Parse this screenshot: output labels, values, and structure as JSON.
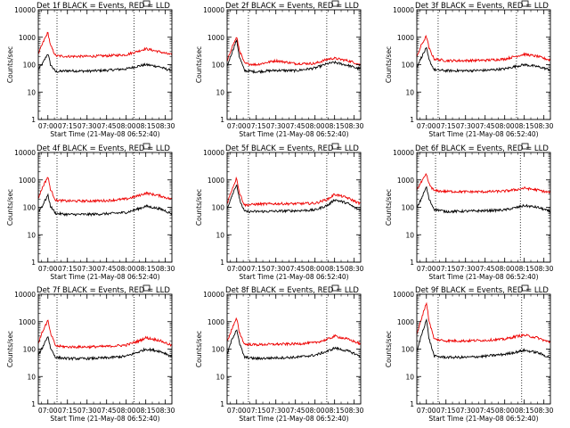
{
  "chart_data": [
    {
      "type": "line",
      "title": "Det 1f BLACK = Events, RED = LLD",
      "xlabel": "Start Time (21-May-08 06:52:40)",
      "ylabel": "Counts/sec",
      "yscale": "log",
      "ylim": [
        1,
        10000
      ],
      "xlim": [
        "06:52:40",
        "08:35:00"
      ],
      "xticks": [
        "07:00",
        "07:15",
        "07:30",
        "07:45",
        "08:00",
        "08:15",
        "08:30"
      ],
      "yticks": [
        "1",
        "10",
        "100",
        "1000",
        "10000"
      ],
      "vlines": [
        "07:07",
        "08:06"
      ],
      "grid": false,
      "series": [
        {
          "color": "#000000",
          "x": [
            "06:52",
            "06:56",
            "07:00",
            "07:02",
            "07:06",
            "07:15",
            "07:30",
            "07:45",
            "08:00",
            "08:10",
            "08:15",
            "08:25",
            "08:30",
            "08:34"
          ],
          "values": [
            60,
            110,
            260,
            100,
            55,
            60,
            58,
            62,
            70,
            90,
            100,
            85,
            70,
            62
          ]
        },
        {
          "color": "#ee0000",
          "x": [
            "06:52",
            "06:56",
            "07:00",
            "07:02",
            "07:06",
            "07:15",
            "07:30",
            "07:45",
            "08:00",
            "08:10",
            "08:15",
            "08:25",
            "08:30",
            "08:34"
          ],
          "values": [
            200,
            600,
            1500,
            500,
            210,
            200,
            200,
            210,
            230,
            320,
            380,
            300,
            260,
            230
          ]
        }
      ]
    },
    {
      "type": "line",
      "title": "Det 2f BLACK = Events, RED = LLD",
      "xlabel": "Start Time (21-May-08 06:52:40)",
      "ylabel": "Counts/sec",
      "yscale": "log",
      "ylim": [
        1,
        10000
      ],
      "xlim": [
        "06:52:40",
        "08:35:00"
      ],
      "xticks": [
        "07:00",
        "07:15",
        "07:30",
        "07:45",
        "08:00",
        "08:15",
        "08:30"
      ],
      "yticks": [
        "1",
        "10",
        "100",
        "1000",
        "10000"
      ],
      "vlines": [
        "07:09",
        "08:09"
      ],
      "grid": false,
      "series": [
        {
          "color": "#000000",
          "x": [
            "06:52",
            "06:56",
            "07:00",
            "07:02",
            "07:06",
            "07:15",
            "07:30",
            "07:45",
            "08:00",
            "08:10",
            "08:15",
            "08:25",
            "08:30",
            "08:34"
          ],
          "values": [
            70,
            250,
            800,
            200,
            60,
            55,
            62,
            60,
            75,
            110,
            120,
            95,
            80,
            70
          ]
        },
        {
          "color": "#ee0000",
          "x": [
            "06:52",
            "06:56",
            "07:00",
            "07:02",
            "07:06",
            "07:15",
            "07:30",
            "07:45",
            "08:00",
            "08:10",
            "08:15",
            "08:25",
            "08:30",
            "08:34"
          ],
          "values": [
            100,
            400,
            1000,
            350,
            110,
            100,
            140,
            110,
            110,
            160,
            170,
            140,
            120,
            100
          ]
        }
      ]
    },
    {
      "type": "line",
      "title": "Det 3f BLACK = Events, RED = LLD",
      "xlabel": "Start Time (21-May-08 06:52:40)",
      "ylabel": "Counts/sec",
      "yscale": "log",
      "ylim": [
        1,
        10000
      ],
      "xlim": [
        "06:52:40",
        "08:35:00"
      ],
      "xticks": [
        "07:00",
        "07:15",
        "07:30",
        "07:45",
        "08:00",
        "08:15",
        "08:30"
      ],
      "yticks": [
        "1",
        "10",
        "100",
        "1000",
        "10000"
      ],
      "vlines": [
        "07:09",
        "08:09"
      ],
      "grid": false,
      "series": [
        {
          "color": "#000000",
          "x": [
            "06:52",
            "06:56",
            "07:00",
            "07:02",
            "07:06",
            "07:15",
            "07:30",
            "07:45",
            "08:00",
            "08:10",
            "08:15",
            "08:25",
            "08:30",
            "08:34"
          ],
          "values": [
            70,
            180,
            400,
            150,
            65,
            60,
            60,
            62,
            70,
            90,
            100,
            85,
            75,
            65
          ]
        },
        {
          "color": "#ee0000",
          "x": [
            "06:52",
            "06:56",
            "07:00",
            "07:02",
            "07:06",
            "07:15",
            "07:30",
            "07:45",
            "08:00",
            "08:10",
            "08:15",
            "08:25",
            "08:30",
            "08:34"
          ],
          "values": [
            150,
            500,
            1100,
            400,
            160,
            140,
            140,
            145,
            160,
            210,
            240,
            200,
            170,
            150
          ]
        }
      ]
    },
    {
      "type": "line",
      "title": "Det 4f BLACK = Events, RED = LLD",
      "xlabel": "Start Time (21-May-08 06:52:40)",
      "ylabel": "Counts/sec",
      "yscale": "log",
      "ylim": [
        1,
        10000
      ],
      "xlim": [
        "06:52:40",
        "08:35:00"
      ],
      "xticks": [
        "07:00",
        "07:15",
        "07:30",
        "07:45",
        "08:00",
        "08:15",
        "08:30"
      ],
      "yticks": [
        "1",
        "10",
        "100",
        "1000",
        "10000"
      ],
      "vlines": [
        "07:07",
        "08:06"
      ],
      "grid": false,
      "series": [
        {
          "color": "#000000",
          "x": [
            "06:52",
            "06:56",
            "07:00",
            "07:02",
            "07:06",
            "07:15",
            "07:30",
            "07:45",
            "08:00",
            "08:10",
            "08:15",
            "08:25",
            "08:30",
            "08:34"
          ],
          "values": [
            60,
            120,
            280,
            110,
            60,
            55,
            55,
            58,
            65,
            90,
            110,
            90,
            75,
            60
          ]
        },
        {
          "color": "#ee0000",
          "x": [
            "06:52",
            "06:56",
            "07:00",
            "07:02",
            "07:06",
            "07:15",
            "07:30",
            "07:45",
            "08:00",
            "08:10",
            "08:15",
            "08:25",
            "08:30",
            "08:34"
          ],
          "values": [
            180,
            550,
            1300,
            450,
            180,
            170,
            170,
            175,
            200,
            270,
            330,
            270,
            230,
            200
          ]
        }
      ]
    },
    {
      "type": "line",
      "title": "Det 5f BLACK = Events, RED = LLD",
      "xlabel": "Start Time (21-May-08 06:52:40)",
      "ylabel": "Counts/sec",
      "yscale": "log",
      "ylim": [
        1,
        10000
      ],
      "xlim": [
        "06:52:40",
        "08:35:00"
      ],
      "xticks": [
        "07:00",
        "07:15",
        "07:30",
        "07:45",
        "08:00",
        "08:15",
        "08:30"
      ],
      "yticks": [
        "1",
        "10",
        "100",
        "1000",
        "10000"
      ],
      "vlines": [
        "07:09",
        "08:09"
      ],
      "grid": false,
      "series": [
        {
          "color": "#000000",
          "x": [
            "06:52",
            "06:56",
            "07:00",
            "07:02",
            "07:06",
            "07:15",
            "07:30",
            "07:45",
            "08:00",
            "08:10",
            "08:15",
            "08:25",
            "08:30",
            "08:34"
          ],
          "values": [
            70,
            250,
            700,
            200,
            70,
            70,
            72,
            75,
            80,
            120,
            190,
            140,
            100,
            80
          ]
        },
        {
          "color": "#ee0000",
          "x": [
            "06:52",
            "06:56",
            "07:00",
            "07:02",
            "07:06",
            "07:15",
            "07:30",
            "07:45",
            "08:00",
            "08:10",
            "08:15",
            "08:25",
            "08:30",
            "08:34"
          ],
          "values": [
            110,
            400,
            1200,
            350,
            120,
            130,
            135,
            135,
            140,
            200,
            300,
            220,
            170,
            140
          ]
        }
      ]
    },
    {
      "type": "line",
      "title": "Det 6f BLACK = Events, RED = LLD",
      "xlabel": "Start Time (21-May-08 06:52:40)",
      "ylabel": "Counts/sec",
      "yscale": "log",
      "ylim": [
        1,
        10000
      ],
      "xlim": [
        "06:52:40",
        "08:35:00"
      ],
      "xticks": [
        "07:00",
        "07:15",
        "07:30",
        "07:45",
        "08:00",
        "08:15",
        "08:30"
      ],
      "yticks": [
        "1",
        "10",
        "100",
        "1000",
        "10000"
      ],
      "vlines": [
        "07:07",
        "08:12"
      ],
      "grid": false,
      "series": [
        {
          "color": "#000000",
          "x": [
            "06:52",
            "06:56",
            "07:00",
            "07:02",
            "07:06",
            "07:15",
            "07:30",
            "07:45",
            "08:00",
            "08:10",
            "08:15",
            "08:25",
            "08:30",
            "08:34"
          ],
          "values": [
            80,
            200,
            550,
            200,
            85,
            70,
            72,
            75,
            80,
            100,
            115,
            100,
            85,
            70
          ]
        },
        {
          "color": "#ee0000",
          "x": [
            "06:52",
            "06:56",
            "07:00",
            "07:02",
            "07:06",
            "07:15",
            "07:30",
            "07:45",
            "08:00",
            "08:10",
            "08:15",
            "08:25",
            "08:30",
            "08:34"
          ],
          "values": [
            400,
            800,
            1600,
            700,
            400,
            380,
            370,
            370,
            390,
            450,
            500,
            430,
            380,
            350
          ]
        }
      ]
    },
    {
      "type": "line",
      "title": "Det 7f BLACK = Events, RED = LLD",
      "xlabel": "Start Time (21-May-08 06:52:40)",
      "ylabel": "Counts/sec",
      "yscale": "log",
      "ylim": [
        1,
        10000
      ],
      "xlim": [
        "06:52:40",
        "08:35:00"
      ],
      "xticks": [
        "07:00",
        "07:15",
        "07:30",
        "07:45",
        "08:00",
        "08:15",
        "08:30"
      ],
      "yticks": [
        "1",
        "10",
        "100",
        "1000",
        "10000"
      ],
      "vlines": [
        "07:07",
        "08:06"
      ],
      "grid": false,
      "series": [
        {
          "color": "#000000",
          "x": [
            "06:52",
            "06:56",
            "07:00",
            "07:02",
            "07:06",
            "07:15",
            "07:30",
            "07:45",
            "08:00",
            "08:10",
            "08:15",
            "08:25",
            "08:30",
            "08:34"
          ],
          "values": [
            50,
            120,
            300,
            110,
            50,
            45,
            45,
            48,
            55,
            80,
            100,
            85,
            70,
            55
          ]
        },
        {
          "color": "#ee0000",
          "x": [
            "06:52",
            "06:56",
            "07:00",
            "07:02",
            "07:06",
            "07:15",
            "07:30",
            "07:45",
            "08:00",
            "08:10",
            "08:15",
            "08:25",
            "08:30",
            "08:34"
          ],
          "values": [
            130,
            450,
            1100,
            380,
            130,
            120,
            120,
            125,
            140,
            200,
            260,
            210,
            170,
            140
          ]
        }
      ]
    },
    {
      "type": "line",
      "title": "Det 8f BLACK = Events, RED = LLD",
      "xlabel": "Start Time (21-May-08 06:52:40)",
      "ylabel": "Counts/sec",
      "yscale": "log",
      "ylim": [
        1,
        10000
      ],
      "xlim": [
        "06:52:40",
        "08:35:00"
      ],
      "xticks": [
        "07:00",
        "07:15",
        "07:30",
        "07:45",
        "08:00",
        "08:15",
        "08:30"
      ],
      "yticks": [
        "1",
        "10",
        "100",
        "1000",
        "10000"
      ],
      "vlines": [
        "07:09",
        "08:09"
      ],
      "grid": false,
      "series": [
        {
          "color": "#000000",
          "x": [
            "06:52",
            "06:56",
            "07:00",
            "07:02",
            "07:06",
            "07:15",
            "07:30",
            "07:45",
            "08:00",
            "08:10",
            "08:15",
            "08:25",
            "08:30",
            "08:34"
          ],
          "values": [
            50,
            200,
            550,
            170,
            50,
            45,
            48,
            50,
            60,
            85,
            110,
            85,
            70,
            55
          ]
        },
        {
          "color": "#ee0000",
          "x": [
            "06:52",
            "06:56",
            "07:00",
            "07:02",
            "07:06",
            "07:15",
            "07:30",
            "07:45",
            "08:00",
            "08:10",
            "08:15",
            "08:25",
            "08:30",
            "08:34"
          ],
          "values": [
            150,
            500,
            1300,
            420,
            150,
            145,
            150,
            155,
            170,
            230,
            300,
            230,
            190,
            160
          ]
        }
      ]
    },
    {
      "type": "line",
      "title": "Det 9f BLACK = Events, RED = LLD",
      "xlabel": "Start Time (21-May-08 06:52:40)",
      "ylabel": "Counts/sec",
      "yscale": "log",
      "ylim": [
        1,
        10000
      ],
      "xlim": [
        "06:52:40",
        "08:35:00"
      ],
      "xticks": [
        "07:00",
        "07:15",
        "07:30",
        "07:45",
        "08:00",
        "08:15",
        "08:30"
      ],
      "yticks": [
        "1",
        "10",
        "100",
        "1000",
        "10000"
      ],
      "vlines": [
        "07:09",
        "08:13"
      ],
      "grid": false,
      "series": [
        {
          "color": "#000000",
          "x": [
            "06:52",
            "06:56",
            "07:00",
            "07:02",
            "07:06",
            "07:15",
            "07:30",
            "07:45",
            "08:00",
            "08:10",
            "08:15",
            "08:25",
            "08:30",
            "08:34"
          ],
          "values": [
            60,
            300,
            1200,
            250,
            55,
            50,
            50,
            55,
            65,
            80,
            90,
            75,
            60,
            50
          ]
        },
        {
          "color": "#ee0000",
          "x": [
            "06:52",
            "06:56",
            "07:00",
            "07:02",
            "07:06",
            "07:15",
            "07:30",
            "07:45",
            "08:00",
            "08:10",
            "08:15",
            "08:25",
            "08:30",
            "08:34"
          ],
          "values": [
            250,
            1200,
            5000,
            1100,
            230,
            200,
            200,
            210,
            230,
            300,
            320,
            260,
            210,
            180
          ]
        }
      ]
    }
  ]
}
